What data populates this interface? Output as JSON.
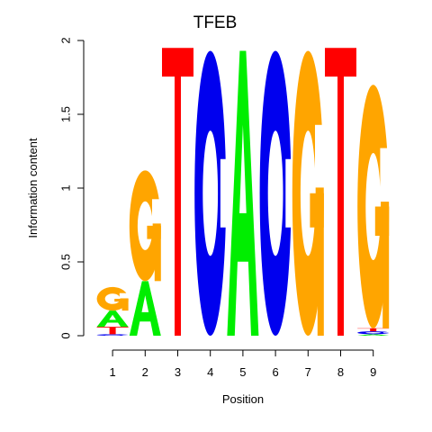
{
  "chart_data": {
    "type": "sequence-logo",
    "title": "TFEB",
    "xlabel": "Position",
    "ylabel": "Information content",
    "ylim": [
      0,
      2
    ],
    "y_ticks": [
      "0",
      "0.5",
      "1",
      "1.5",
      "2"
    ],
    "y_tick_values": [
      0,
      0.5,
      1,
      1.5,
      2
    ],
    "positions": [
      "1",
      "2",
      "3",
      "4",
      "5",
      "6",
      "7",
      "8",
      "9"
    ],
    "colors": {
      "A": "#00ee00",
      "C": "#0000ee",
      "G": "#ffa500",
      "T": "#ff0000"
    },
    "stacks": [
      [
        {
          "letter": "C",
          "height": 0.01
        },
        {
          "letter": "T",
          "height": 0.05
        },
        {
          "letter": "A",
          "height": 0.11
        },
        {
          "letter": "G",
          "height": 0.16
        }
      ],
      [
        {
          "letter": "A",
          "height": 0.37
        },
        {
          "letter": "G",
          "height": 0.75
        }
      ],
      [
        {
          "letter": "T",
          "height": 1.95
        }
      ],
      [
        {
          "letter": "C",
          "height": 1.93
        }
      ],
      [
        {
          "letter": "A",
          "height": 1.93
        }
      ],
      [
        {
          "letter": "C",
          "height": 1.93
        }
      ],
      [
        {
          "letter": "G",
          "height": 1.93
        }
      ],
      [
        {
          "letter": "T",
          "height": 1.95
        }
      ],
      [
        {
          "letter": "A",
          "height": 0.01
        },
        {
          "letter": "C",
          "height": 0.02
        },
        {
          "letter": "T",
          "height": 0.02
        },
        {
          "letter": "G",
          "height": 1.65
        }
      ]
    ]
  }
}
